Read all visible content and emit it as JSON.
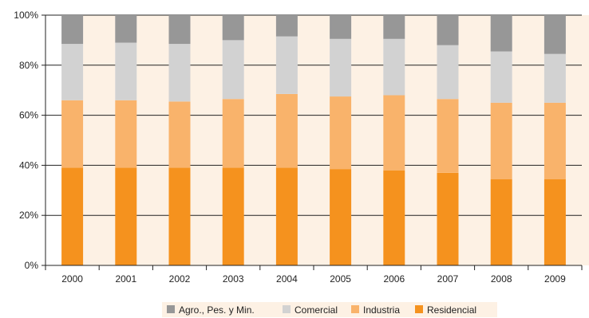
{
  "chart_data": {
    "type": "bar",
    "stacked": true,
    "percent": true,
    "title": "",
    "xlabel": "",
    "ylabel": "",
    "ylim": [
      0,
      100
    ],
    "yticks": [
      "0%",
      "20%",
      "40%",
      "60%",
      "80%",
      "100%"
    ],
    "ytick_values": [
      0,
      20,
      40,
      60,
      80,
      100
    ],
    "categories": [
      "2000",
      "2001",
      "2002",
      "2003",
      "2004",
      "2005",
      "2006",
      "2007",
      "2008",
      "2009"
    ],
    "series": [
      {
        "name": "Residencial",
        "color": "#f5921e",
        "values": [
          39,
          39,
          39,
          39,
          39,
          38.5,
          38,
          37,
          34.5,
          34.5
        ]
      },
      {
        "name": "Industria",
        "color": "#f9b36b",
        "values": [
          27,
          27,
          26.5,
          27.5,
          29.5,
          29,
          30,
          29.5,
          30.5,
          30.5
        ]
      },
      {
        "name": "Comercial",
        "color": "#d2d2d2",
        "values": [
          22.5,
          23,
          23,
          23.5,
          23,
          23,
          22.5,
          21.5,
          20.5,
          19.5
        ]
      },
      {
        "name": "Agro., Pes. y Min.",
        "color": "#979797",
        "values": [
          11.5,
          11,
          11.5,
          10,
          8.5,
          9.5,
          9.5,
          12,
          14.5,
          15.5
        ]
      }
    ],
    "legend_order": [
      "Agro., Pes. y Min.",
      "Comercial",
      "Industria",
      "Residencial"
    ],
    "legend_position": "bottom",
    "grid": true,
    "background_band_color": "#fdf1e4",
    "grid_color": "#222222"
  }
}
